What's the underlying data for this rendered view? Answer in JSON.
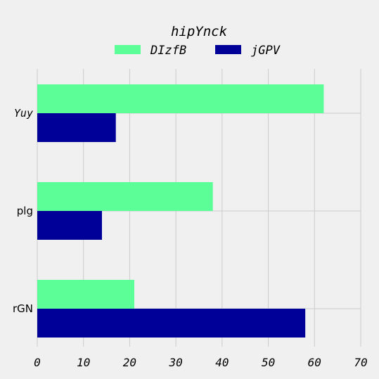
{
  "chart_data": {
    "type": "bar",
    "orientation": "horizontal",
    "title": "hipYnck",
    "categories": [
      "Yuy",
      "plg",
      "rGN"
    ],
    "series": [
      {
        "name": "DIzfB",
        "color": "#5cff97",
        "values": [
          62,
          38,
          21
        ]
      },
      {
        "name": "jGPV",
        "color": "#000099",
        "values": [
          17,
          14,
          58
        ]
      }
    ],
    "xlim": [
      0,
      70
    ],
    "xticks": [
      0,
      10,
      20,
      30,
      40,
      50,
      60,
      70
    ],
    "tick_labels": [
      "0",
      "10",
      "20",
      "30",
      "40",
      "50",
      "60",
      "70"
    ],
    "grid": true,
    "legend_position": "top-center",
    "background": "#f0f0f0",
    "grid_color": "#cbcbcb"
  }
}
